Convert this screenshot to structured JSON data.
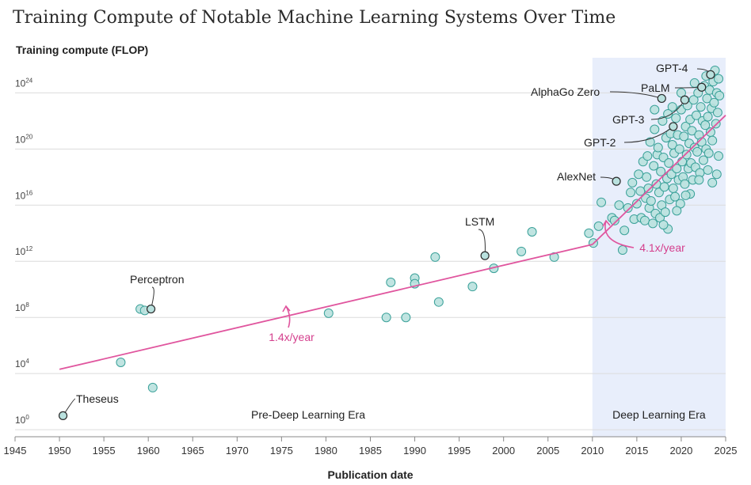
{
  "chart_data": {
    "type": "scatter",
    "title": "Training Compute of Notable Machine Learning Systems Over Time",
    "ylabel": "Training compute (FLOP)",
    "xlabel": "Publication date",
    "x_ticks": [
      1945,
      1950,
      1955,
      1960,
      1965,
      1970,
      1975,
      1980,
      1985,
      1990,
      1995,
      2000,
      2005,
      2010,
      2015,
      2020,
      2025
    ],
    "y_ticks": [
      0,
      4,
      8,
      12,
      16,
      20,
      24
    ],
    "y_tick_base": "10",
    "xlim": [
      1945,
      2025
    ],
    "ylim_log10": [
      -0.5,
      26.5
    ],
    "deep_learning_start": 2010,
    "colors": {
      "point_fill": "#b9e1de",
      "point_stroke": "#3aa199",
      "trend": "#e0559e",
      "region": "#e8eefb",
      "grid": "#dcdcdc"
    },
    "eras": [
      {
        "label": "Pre-Deep Learning Era",
        "x": 1978,
        "y": 0.8
      },
      {
        "label": "Deep Learning Era",
        "x": 2017.5,
        "y": 0.8
      }
    ],
    "trends": [
      {
        "name": "pre-deep-learning-trend",
        "label": "1.4x/year",
        "points": [
          [
            1950,
            4.3
          ],
          [
            2010,
            13.2
          ]
        ]
      },
      {
        "name": "deep-learning-trend",
        "label": "4.1x/year",
        "points": [
          [
            2010,
            13.2
          ],
          [
            2025,
            22.4
          ]
        ]
      }
    ],
    "labeled_systems": [
      {
        "name": "Theseus",
        "x": 1950.4,
        "y": 1.0
      },
      {
        "name": "Perceptron",
        "x": 1960.3,
        "y": 8.6
      },
      {
        "name": "LSTM",
        "x": 1997.9,
        "y": 12.4
      },
      {
        "name": "AlexNet",
        "x": 2012.7,
        "y": 17.7
      },
      {
        "name": "GPT-2",
        "x": 2019.1,
        "y": 21.6
      },
      {
        "name": "GPT-3",
        "x": 2020.4,
        "y": 23.5
      },
      {
        "name": "AlphaGo Zero",
        "x": 2017.8,
        "y": 23.6
      },
      {
        "name": "PaLM",
        "x": 2022.3,
        "y": 24.4
      },
      {
        "name": "GPT-4",
        "x": 2023.3,
        "y": 25.3
      }
    ],
    "points": [
      [
        1956.9,
        4.8
      ],
      [
        1959.1,
        8.6
      ],
      [
        1959.6,
        8.5
      ],
      [
        1960.5,
        3.0
      ],
      [
        1980.3,
        8.3
      ],
      [
        1986.8,
        8.0
      ],
      [
        1987.3,
        10.5
      ],
      [
        1989.0,
        8.0
      ],
      [
        1990.0,
        10.8
      ],
      [
        1990.0,
        10.4
      ],
      [
        1992.3,
        12.3
      ],
      [
        1992.7,
        9.1
      ],
      [
        1996.5,
        10.2
      ],
      [
        1998.9,
        11.5
      ],
      [
        2002.0,
        12.7
      ],
      [
        2003.2,
        14.1
      ],
      [
        2005.7,
        12.3
      ],
      [
        2009.6,
        14.0
      ],
      [
        2010.1,
        13.3
      ],
      [
        2010.7,
        14.5
      ],
      [
        2011.0,
        16.2
      ],
      [
        2012.2,
        15.1
      ],
      [
        2012.5,
        14.9
      ],
      [
        2013.0,
        16.0
      ],
      [
        2013.4,
        12.8
      ],
      [
        2013.6,
        14.2
      ],
      [
        2014.0,
        15.8
      ],
      [
        2014.3,
        16.9
      ],
      [
        2014.5,
        17.6
      ],
      [
        2014.7,
        15.0
      ],
      [
        2015.0,
        16.1
      ],
      [
        2015.2,
        18.2
      ],
      [
        2015.4,
        17.0
      ],
      [
        2015.5,
        15.1
      ],
      [
        2015.7,
        19.1
      ],
      [
        2015.9,
        14.9
      ],
      [
        2016.0,
        16.5
      ],
      [
        2016.1,
        18.0
      ],
      [
        2016.2,
        19.5
      ],
      [
        2016.3,
        17.2
      ],
      [
        2016.4,
        15.8
      ],
      [
        2016.5,
        20.5
      ],
      [
        2016.6,
        16.3
      ],
      [
        2016.8,
        14.7
      ],
      [
        2016.9,
        18.8
      ],
      [
        2017.0,
        21.4
      ],
      [
        2017.1,
        15.4
      ],
      [
        2017.2,
        17.5
      ],
      [
        2017.3,
        19.6
      ],
      [
        2017.4,
        20.1
      ],
      [
        2017.5,
        16.9
      ],
      [
        2017.6,
        15.1
      ],
      [
        2017.7,
        18.4
      ],
      [
        2017.9,
        22.0
      ],
      [
        2017.8,
        16.0
      ],
      [
        2018.0,
        19.4
      ],
      [
        2018.1,
        17.3
      ],
      [
        2018.2,
        15.5
      ],
      [
        2018.3,
        20.8
      ],
      [
        2018.4,
        17.9
      ],
      [
        2018.5,
        14.3
      ],
      [
        2018.6,
        19.0
      ],
      [
        2018.7,
        16.4
      ],
      [
        2018.8,
        21.1
      ],
      [
        2018.9,
        18.2
      ],
      [
        2019.0,
        20.3
      ],
      [
        2019.1,
        17.2
      ],
      [
        2019.2,
        19.7
      ],
      [
        2019.3,
        16.6
      ],
      [
        2019.4,
        22.2
      ],
      [
        2019.5,
        18.6
      ],
      [
        2019.6,
        21.0
      ],
      [
        2019.7,
        17.8
      ],
      [
        2019.8,
        20.0
      ],
      [
        2019.9,
        16.1
      ],
      [
        2020.0,
        22.8
      ],
      [
        2020.1,
        19.1
      ],
      [
        2020.2,
        18.0
      ],
      [
        2020.3,
        20.9
      ],
      [
        2020.4,
        17.5
      ],
      [
        2020.5,
        21.6
      ],
      [
        2020.6,
        19.6
      ],
      [
        2020.7,
        23.1
      ],
      [
        2020.8,
        18.6
      ],
      [
        2020.9,
        20.4
      ],
      [
        2021.0,
        22.1
      ],
      [
        2021.1,
        19.0
      ],
      [
        2021.2,
        21.3
      ],
      [
        2021.3,
        17.8
      ],
      [
        2021.4,
        23.5
      ],
      [
        2021.5,
        20.1
      ],
      [
        2021.6,
        18.7
      ],
      [
        2021.7,
        22.4
      ],
      [
        2021.8,
        19.8
      ],
      [
        2021.9,
        24.0
      ],
      [
        2022.0,
        21.0
      ],
      [
        2022.1,
        18.3
      ],
      [
        2022.2,
        23.0
      ],
      [
        2022.3,
        20.5
      ],
      [
        2022.4,
        22.0
      ],
      [
        2022.5,
        19.2
      ],
      [
        2022.6,
        24.5
      ],
      [
        2022.7,
        21.7
      ],
      [
        2022.8,
        20.0
      ],
      [
        2022.9,
        23.6
      ],
      [
        2023.0,
        22.3
      ],
      [
        2023.1,
        19.7
      ],
      [
        2023.2,
        24.2
      ],
      [
        2023.3,
        21.2
      ],
      [
        2023.4,
        22.9
      ],
      [
        2023.5,
        20.6
      ],
      [
        2023.6,
        24.8
      ],
      [
        2023.7,
        23.3
      ],
      [
        2023.8,
        25.6
      ],
      [
        2023.9,
        21.8
      ],
      [
        2024.0,
        24.0
      ],
      [
        2024.1,
        22.6
      ],
      [
        2024.2,
        25.0
      ],
      [
        2024.3,
        23.8
      ],
      [
        2024.2,
        19.5
      ],
      [
        2021.5,
        24.7
      ],
      [
        2022.8,
        25.2
      ],
      [
        2020.0,
        24.0
      ],
      [
        2019.0,
        23.0
      ],
      [
        2018.5,
        22.5
      ],
      [
        2017.0,
        22.8
      ],
      [
        2023.0,
        18.5
      ],
      [
        2022.0,
        17.8
      ],
      [
        2021.0,
        16.8
      ],
      [
        2024.0,
        18.2
      ],
      [
        2023.5,
        17.6
      ],
      [
        2020.5,
        16.7
      ],
      [
        2019.5,
        15.6
      ],
      [
        2018.0,
        14.6
      ]
    ]
  }
}
